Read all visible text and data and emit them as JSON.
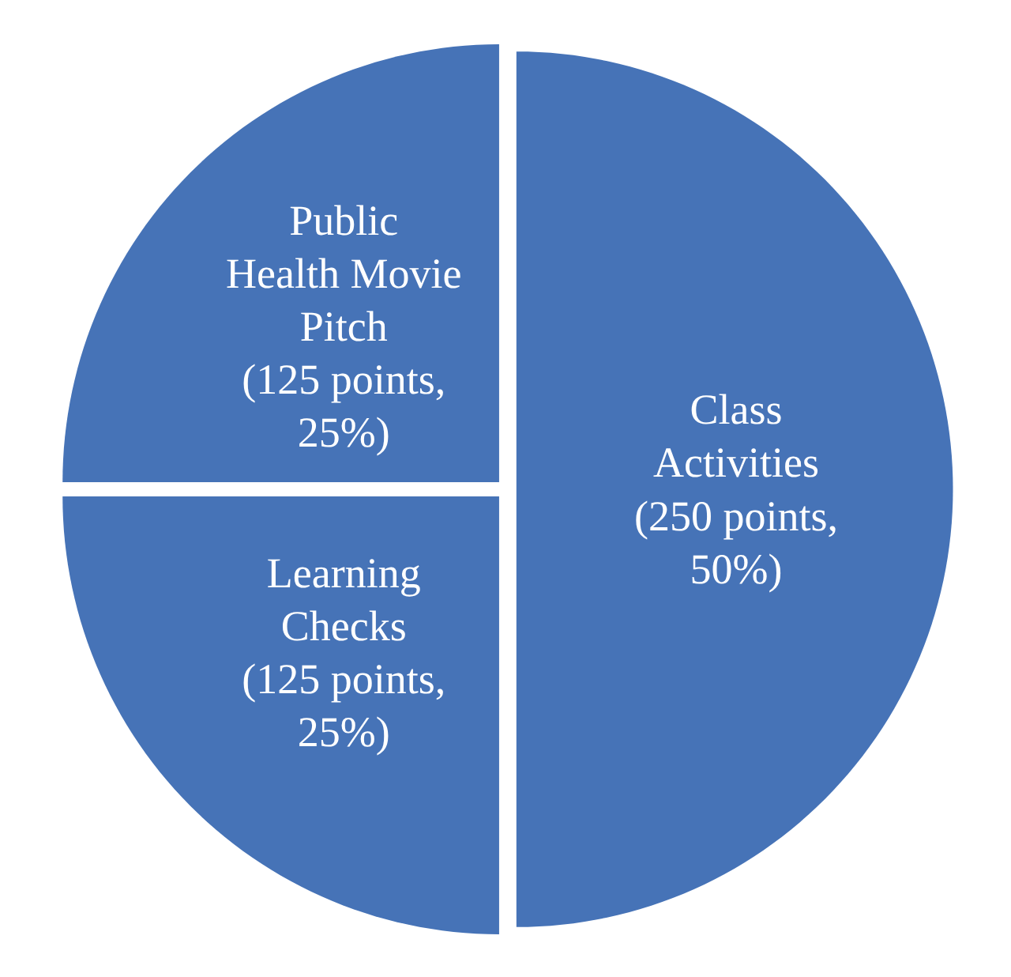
{
  "chart_data": {
    "type": "pie",
    "categories": [
      "Class Activities",
      "Learning Checks",
      "Public Health Movie Pitch"
    ],
    "values": [
      250,
      125,
      125
    ],
    "colors": [
      "#4673b7",
      "#4673b7",
      "#4673b7"
    ],
    "value_labels": [
      "(250 points, 50%)",
      "(125 points, 25%)",
      "(125 points, 25%)"
    ]
  }
}
